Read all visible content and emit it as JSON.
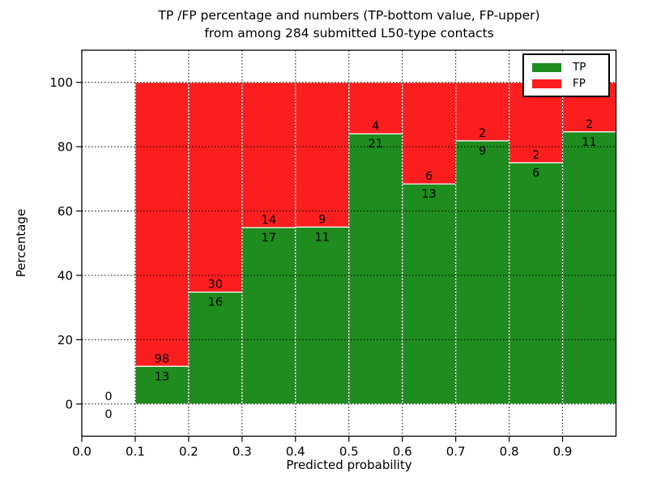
{
  "figure": {
    "title_line1": "TP /FP percentage and numbers (TP-bottom value, FP-upper)",
    "title_line2": "from among 284 submitted L50-type contacts",
    "xlabel": "Predicted probability",
    "ylabel": "Percentage",
    "total_contacts": 284
  },
  "legend": {
    "items": [
      {
        "label": "TP",
        "color": "#1e8c1e"
      },
      {
        "label": "FP",
        "color": "#fa1e1e"
      }
    ]
  },
  "chart_data": {
    "type": "bar",
    "stacked": true,
    "title": "TP /FP percentage and numbers (TP-bottom value, FP-upper)\nfrom among 284 submitted L50-type contacts",
    "xlabel": "Predicted probability",
    "ylabel": "Percentage",
    "xlim": [
      0.0,
      1.0
    ],
    "ylim": [
      -10,
      110
    ],
    "grid": "dotted-black",
    "legend_position": "upper right",
    "bar_edge_color": "#ffffff",
    "xticks": [
      0.0,
      0.1,
      0.2,
      0.3,
      0.4,
      0.5,
      0.6,
      0.7,
      0.8,
      0.9
    ],
    "yticks": [
      0,
      20,
      40,
      60,
      80,
      100
    ],
    "categories": [
      "0.0-0.1",
      "0.1-0.2",
      "0.2-0.3",
      "0.3-0.4",
      "0.4-0.5",
      "0.5-0.6",
      "0.6-0.7",
      "0.7-0.8",
      "0.8-0.9",
      "0.9-1.0"
    ],
    "series": [
      {
        "name": "TP",
        "color": "#1e8c1e",
        "counts": [
          0,
          13,
          16,
          17,
          11,
          21,
          13,
          9,
          6,
          11
        ]
      },
      {
        "name": "FP",
        "color": "#fa1e1e",
        "counts": [
          0,
          98,
          30,
          14,
          9,
          4,
          6,
          2,
          2,
          2
        ]
      }
    ],
    "bins": [
      {
        "x0": 0.0,
        "x1": 0.1,
        "tp": 0,
        "fp": 0,
        "tp_pct": 0,
        "fp_pct": 0
      },
      {
        "x0": 0.1,
        "x1": 0.2,
        "tp": 13,
        "fp": 98,
        "tp_pct": 11.71,
        "fp_pct": 88.29
      },
      {
        "x0": 0.2,
        "x1": 0.3,
        "tp": 16,
        "fp": 30,
        "tp_pct": 34.78,
        "fp_pct": 65.22
      },
      {
        "x0": 0.3,
        "x1": 0.4,
        "tp": 17,
        "fp": 14,
        "tp_pct": 54.84,
        "fp_pct": 45.16
      },
      {
        "x0": 0.4,
        "x1": 0.5,
        "tp": 11,
        "fp": 9,
        "tp_pct": 55.0,
        "fp_pct": 45.0
      },
      {
        "x0": 0.5,
        "x1": 0.6,
        "tp": 21,
        "fp": 4,
        "tp_pct": 84.0,
        "fp_pct": 16.0
      },
      {
        "x0": 0.6,
        "x1": 0.7,
        "tp": 13,
        "fp": 6,
        "tp_pct": 68.42,
        "fp_pct": 31.58
      },
      {
        "x0": 0.7,
        "x1": 0.8,
        "tp": 9,
        "fp": 2,
        "tp_pct": 81.82,
        "fp_pct": 18.18
      },
      {
        "x0": 0.8,
        "x1": 0.9,
        "tp": 6,
        "fp": 2,
        "tp_pct": 75.0,
        "fp_pct": 25.0
      },
      {
        "x0": 0.9,
        "x1": 1.0,
        "tp": 11,
        "fp": 2,
        "tp_pct": 84.62,
        "fp_pct": 15.38
      }
    ]
  }
}
